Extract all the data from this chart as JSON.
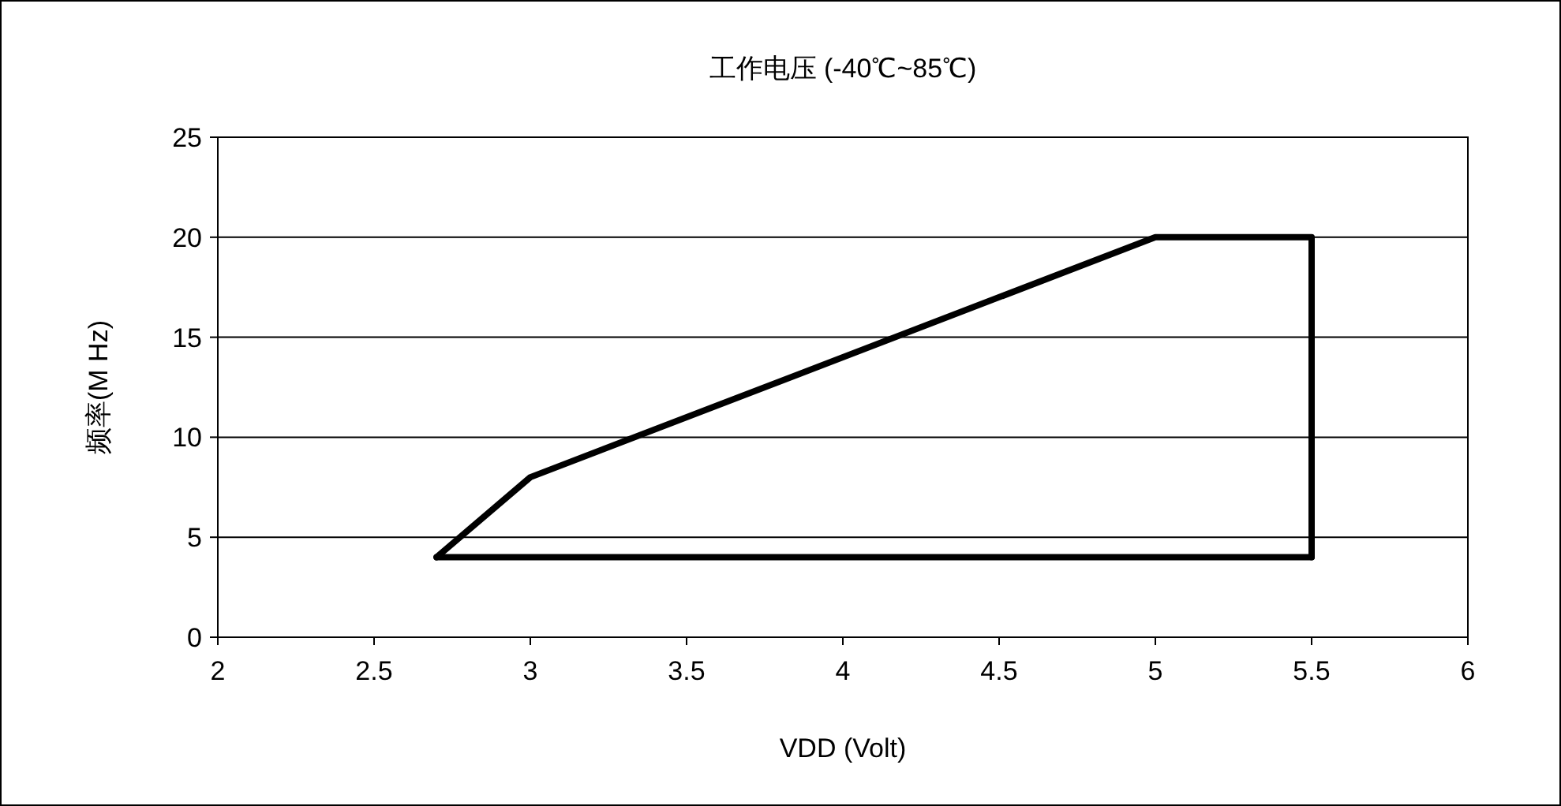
{
  "chart_data": {
    "type": "line",
    "title": "工作电压 (-40℃~85℃)",
    "xlabel": "VDD (Volt)",
    "ylabel": "频率(M Hz)",
    "series": [
      {
        "color": "#000000",
        "x": [
          2.7,
          3,
          5,
          5.5,
          5.5
        ],
        "values": [
          4,
          8,
          20,
          20,
          4
        ]
      },
      {
        "color": "#000000",
        "x": [
          2.7,
          5.5
        ],
        "values": [
          4,
          4
        ]
      }
    ],
    "xlim": [
      2,
      6
    ],
    "ylim": [
      0,
      25
    ],
    "xticks": [
      2,
      2.5,
      3,
      3.5,
      4,
      4.5,
      5,
      5.5,
      6
    ],
    "yticks": [
      0,
      5,
      10,
      15,
      20,
      25
    ],
    "grid": "y"
  }
}
